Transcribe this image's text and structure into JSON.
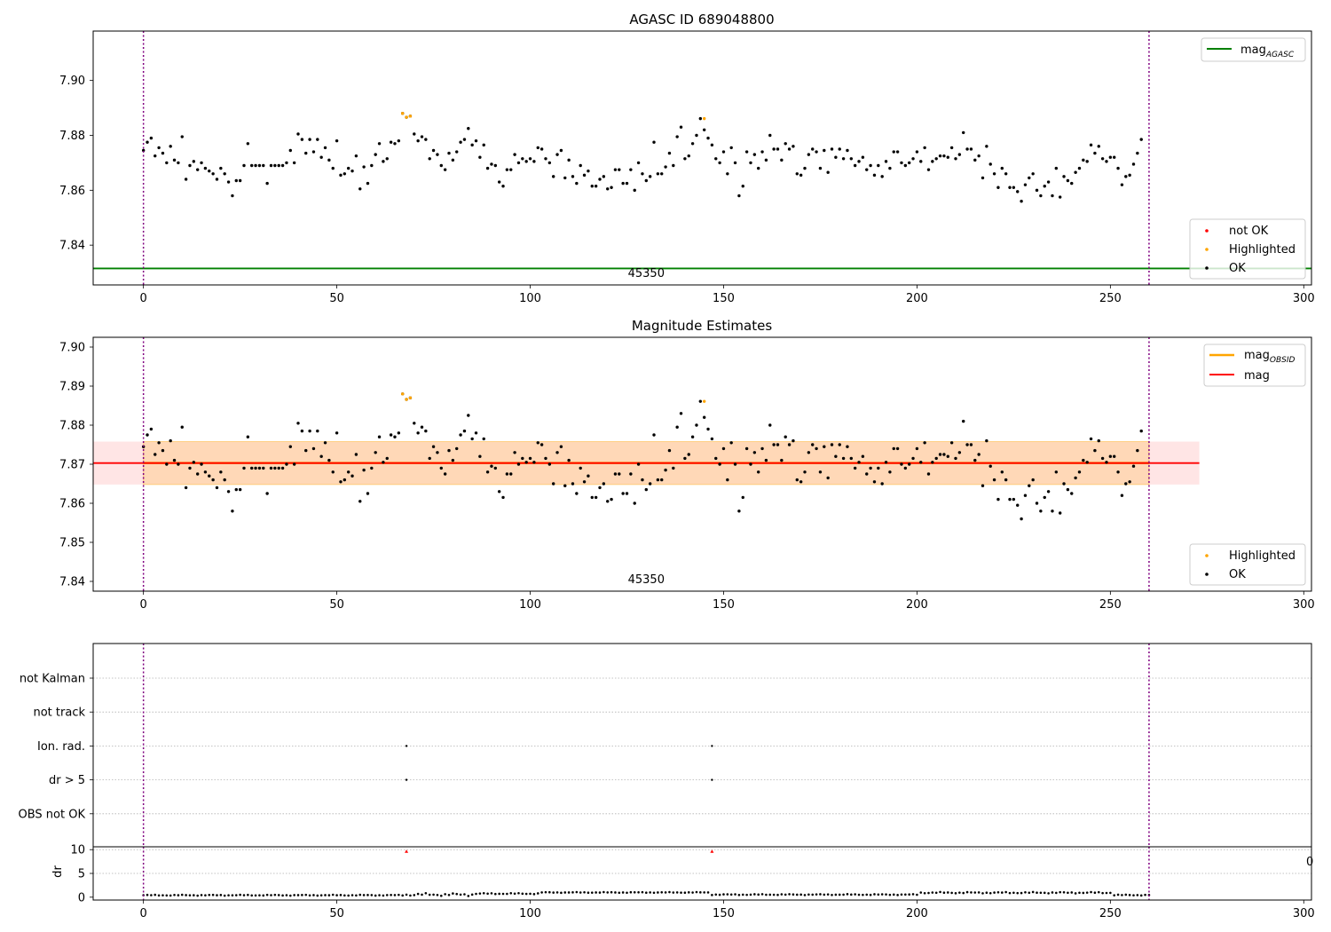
{
  "chart_data": [
    {
      "type": "scatter",
      "title": "AGASC ID 689048800",
      "xlim": [
        -13,
        302
      ],
      "ylim": [
        7.8255,
        7.918
      ],
      "yticks": [
        7.84,
        7.86,
        7.88,
        7.9
      ],
      "ytick_labels": [
        "7.84",
        "7.86",
        "7.88",
        "7.90"
      ],
      "xticks": [
        0,
        50,
        100,
        150,
        200,
        250,
        300
      ],
      "xtick_labels": [
        "0",
        "50",
        "100",
        "150",
        "200",
        "250",
        "300"
      ],
      "vlines": [
        0,
        260
      ],
      "mag_agasc": 7.8315,
      "obsid_label": "45350",
      "obsid_label_x": 130,
      "legend_top": [
        {
          "label": "mag",
          "sub": "AGASC",
          "color": "#008000"
        }
      ],
      "legend_bottom": [
        {
          "label": "not OK",
          "color": "#ff0000"
        },
        {
          "label": "Highlighted",
          "color": "#ffa500"
        },
        {
          "label": "OK",
          "color": "#000000"
        }
      ],
      "highlighted_points": [
        [
          67,
          7.888
        ],
        [
          68,
          7.8866
        ],
        [
          69,
          7.887
        ],
        [
          145,
          7.8861
        ]
      ],
      "ok_points_y": [
        7.8745,
        7.8775,
        7.879,
        7.8725,
        7.8755,
        7.8735,
        7.87,
        7.876,
        7.871,
        7.87,
        7.8795,
        7.864,
        7.869,
        7.8705,
        7.8675,
        7.87,
        7.868,
        7.867,
        7.866,
        7.864,
        7.868,
        7.866,
        7.863,
        7.858,
        7.8635,
        7.8635,
        7.869,
        7.877,
        7.869,
        7.869,
        7.869,
        7.869,
        7.8625,
        7.869,
        7.869,
        7.869,
        7.869,
        7.87,
        7.8745,
        7.87,
        7.8805,
        7.8785,
        7.8735,
        7.8785,
        7.874,
        7.8785,
        7.872,
        7.8755,
        7.871,
        7.868,
        7.878,
        7.8655,
        7.866,
        7.868,
        7.867,
        7.8725,
        7.8605,
        7.8685,
        7.8625,
        7.869,
        7.873,
        7.877,
        7.8705,
        7.8715,
        7.8775,
        7.877,
        7.878,
        7.888,
        7.8866,
        7.887,
        7.8805,
        7.878,
        7.8795,
        7.8785,
        7.8715,
        7.8745,
        7.873,
        7.869,
        7.8675,
        7.8735,
        7.871,
        7.874,
        7.8775,
        7.8785,
        7.8825,
        7.8765,
        7.878,
        7.872,
        7.8765,
        7.868,
        7.8695,
        7.869,
        7.863,
        7.8615,
        7.8675,
        7.8675,
        7.873,
        7.87,
        7.8715,
        7.8705,
        7.8715,
        7.8705,
        7.8755,
        7.875,
        7.8715,
        7.87,
        7.865,
        7.873,
        7.8745,
        7.8645,
        7.871,
        7.865,
        7.8625,
        7.869,
        7.8655,
        7.867,
        7.8615,
        7.8615,
        7.864,
        7.865,
        7.8605,
        7.861,
        7.8675,
        7.8675,
        7.8625,
        7.8625,
        7.8675,
        7.86,
        7.87,
        7.866,
        7.8635,
        7.865,
        7.8775,
        7.866,
        7.866,
        7.8685,
        7.8735,
        7.869,
        7.8795,
        7.883,
        7.8715,
        7.8725,
        7.877,
        7.88,
        7.8861,
        7.882,
        7.879,
        7.8765,
        7.8715,
        7.87,
        7.874,
        7.866,
        7.8755,
        7.87,
        7.858,
        7.8615,
        7.874,
        7.87,
        7.873,
        7.868,
        7.874,
        7.871,
        7.88,
        7.875,
        7.875,
        7.871,
        7.877,
        7.875,
        7.876,
        7.866,
        7.8655,
        7.868,
        7.873,
        7.875,
        7.874,
        7.868,
        7.8745,
        7.8665,
        7.875,
        7.872,
        7.875,
        7.8715,
        7.8745,
        7.8715,
        7.869,
        7.8705,
        7.872,
        7.8675,
        7.869,
        7.8655,
        7.869,
        7.865,
        7.8705,
        7.868,
        7.874,
        7.874,
        7.87,
        7.869,
        7.87,
        7.8715,
        7.874,
        7.8705,
        7.8755,
        7.8675,
        7.8705,
        7.8715,
        7.8725,
        7.8725,
        7.872,
        7.8755,
        7.8715,
        7.873,
        7.881,
        7.875,
        7.875,
        7.871,
        7.8725,
        7.8645,
        7.876,
        7.8695,
        7.866,
        7.861,
        7.868,
        7.866,
        7.861,
        7.861,
        7.8595,
        7.856,
        7.862,
        7.8645,
        7.866,
        7.86,
        7.858,
        7.8615,
        7.863,
        7.858,
        7.868,
        7.8575,
        7.865,
        7.8635,
        7.8625,
        7.8665,
        7.868,
        7.871,
        7.8705,
        7.8765,
        7.8735,
        7.876,
        7.8715,
        7.8705,
        7.872,
        7.872,
        7.868,
        7.862,
        7.865,
        7.8655,
        7.8695,
        7.8735,
        7.8785
      ]
    },
    {
      "type": "scatter",
      "title": "Magnitude Estimates",
      "xlim": [
        -13,
        302
      ],
      "ylim": [
        7.8375,
        7.9025
      ],
      "yticks": [
        7.84,
        7.85,
        7.86,
        7.87,
        7.88,
        7.89,
        7.9
      ],
      "ytick_labels": [
        "7.84",
        "7.85",
        "7.86",
        "7.87",
        "7.88",
        "7.89",
        "7.90"
      ],
      "xticks": [
        0,
        50,
        100,
        150,
        200,
        250,
        300
      ],
      "xtick_labels": [
        "0",
        "50",
        "100",
        "150",
        "200",
        "250",
        "300"
      ],
      "vlines": [
        0,
        260
      ],
      "mag": 7.8703,
      "mag_band": [
        7.8648,
        7.8758
      ],
      "mag_band_x": [
        -13,
        273
      ],
      "mag_obsid": 7.8703,
      "mag_obsid_band": [
        7.8648,
        7.8758
      ],
      "mag_obsid_band_x": [
        0,
        260
      ],
      "obsid_label": "45350",
      "obsid_label_x": 130,
      "legend_top": [
        {
          "label": "mag",
          "sub": "OBSID",
          "color": "#ffa500"
        },
        {
          "label": "mag",
          "sub": "",
          "color": "#ff0000"
        }
      ],
      "legend_bottom": [
        {
          "label": "Highlighted",
          "color": "#ffa500"
        },
        {
          "label": "OK",
          "color": "#000000"
        }
      ]
    },
    {
      "type": "scatter",
      "title": "",
      "xlim": [
        -13,
        302
      ],
      "categories": [
        "not Kalman",
        "not track",
        "Ion. rad.",
        "dr > 5",
        "OBS not OK"
      ],
      "flag_points": {
        "Ion. rad.": [
          68,
          147
        ],
        "dr > 5": [
          68,
          147
        ]
      },
      "vlines": [
        0,
        260
      ]
    },
    {
      "type": "scatter",
      "title": "",
      "xlim": [
        -13,
        302
      ],
      "ylim": [
        -0.6,
        10.6
      ],
      "ylabel": "dr",
      "yticks": [
        0,
        5,
        10
      ],
      "ytick_labels": [
        "0",
        "5",
        "10"
      ],
      "xticks": [
        0,
        50,
        100,
        150,
        200,
        250,
        300
      ],
      "xtick_labels": [
        "0",
        "50",
        "100",
        "150",
        "200",
        "250",
        "300"
      ],
      "vlines": [
        0,
        260
      ],
      "clipped_points_x": [
        68,
        147
      ],
      "clipped_value": 10,
      "dr_segments": [
        {
          "x_start": 0,
          "x_end": 67,
          "base": 0.42,
          "amp": 0.1
        },
        {
          "x_start": 68,
          "x_end": 85,
          "base": 0.55,
          "amp": 0.3
        },
        {
          "x_start": 86,
          "x_end": 102,
          "base": 0.75,
          "amp": 0.12
        },
        {
          "x_start": 103,
          "x_end": 146,
          "base": 1.0,
          "amp": 0.08
        },
        {
          "x_start": 147,
          "x_end": 200,
          "base": 0.55,
          "amp": 0.1
        },
        {
          "x_start": 201,
          "x_end": 250,
          "base": 0.95,
          "amp": 0.15
        },
        {
          "x_start": 251,
          "x_end": 260,
          "base": 0.45,
          "amp": 0.1
        }
      ],
      "right_edge_tick_fragment": "0"
    }
  ]
}
